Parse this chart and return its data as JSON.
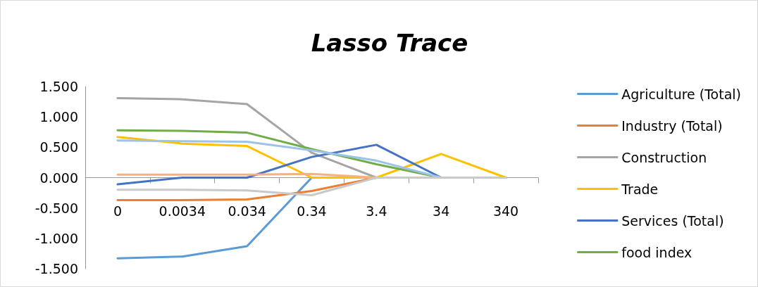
{
  "chart_data": {
    "type": "line",
    "title": "Lasso Trace",
    "categories": [
      "0",
      "0.0034",
      "0.034",
      "0.34",
      "3.4",
      "34",
      "340"
    ],
    "series": [
      {
        "name": "Agriculture (Total)",
        "color": "#5b9bd5",
        "values": [
          -1.33,
          -1.3,
          -1.13,
          0,
          0,
          0,
          0
        ]
      },
      {
        "name": "Industry (Total)",
        "color": "#ed7d31",
        "values": [
          -0.37,
          -0.37,
          -0.36,
          -0.22,
          0,
          0,
          0
        ]
      },
      {
        "name": "Construction",
        "color": "#a5a5a5",
        "values": [
          1.31,
          1.29,
          1.21,
          0.41,
          0,
          0,
          0
        ]
      },
      {
        "name": "Trade",
        "color": "#ffc000",
        "values": [
          0.67,
          0.56,
          0.52,
          0,
          0,
          0.39,
          0
        ]
      },
      {
        "name": "Services (Total)",
        "color": "#4472c4",
        "values": [
          -0.11,
          0,
          0,
          0.34,
          0.54,
          0,
          0
        ]
      },
      {
        "name": "food index",
        "color": "#70ad47",
        "values": [
          0.78,
          0.77,
          0.74,
          0.47,
          0.22,
          0,
          0
        ]
      },
      {
        "color": "#9dc3e6",
        "values": [
          0.61,
          0.6,
          0.59,
          0.45,
          0.28,
          0,
          0
        ]
      },
      {
        "color": "#f4b183",
        "values": [
          0.05,
          0.05,
          0.05,
          0.06,
          0,
          0,
          0
        ]
      },
      {
        "color": "#c9c9c9",
        "values": [
          -0.2,
          -0.2,
          -0.21,
          -0.29,
          0,
          0,
          0
        ]
      }
    ],
    "ylim": [
      -1.5,
      1.5
    ],
    "yticks": [
      {
        "value": -1.5,
        "label": "-1.500"
      },
      {
        "value": -1.0,
        "label": "-1.000"
      },
      {
        "value": -0.5,
        "label": "-0.500"
      },
      {
        "value": 0,
        "label": "0.000"
      },
      {
        "value": 0.5,
        "label": "0.500"
      },
      {
        "value": 1.0,
        "label": "1.000"
      },
      {
        "value": 1.5,
        "label": "1.500"
      }
    ],
    "legend": "right",
    "marker": "none",
    "line_style": "solid"
  }
}
